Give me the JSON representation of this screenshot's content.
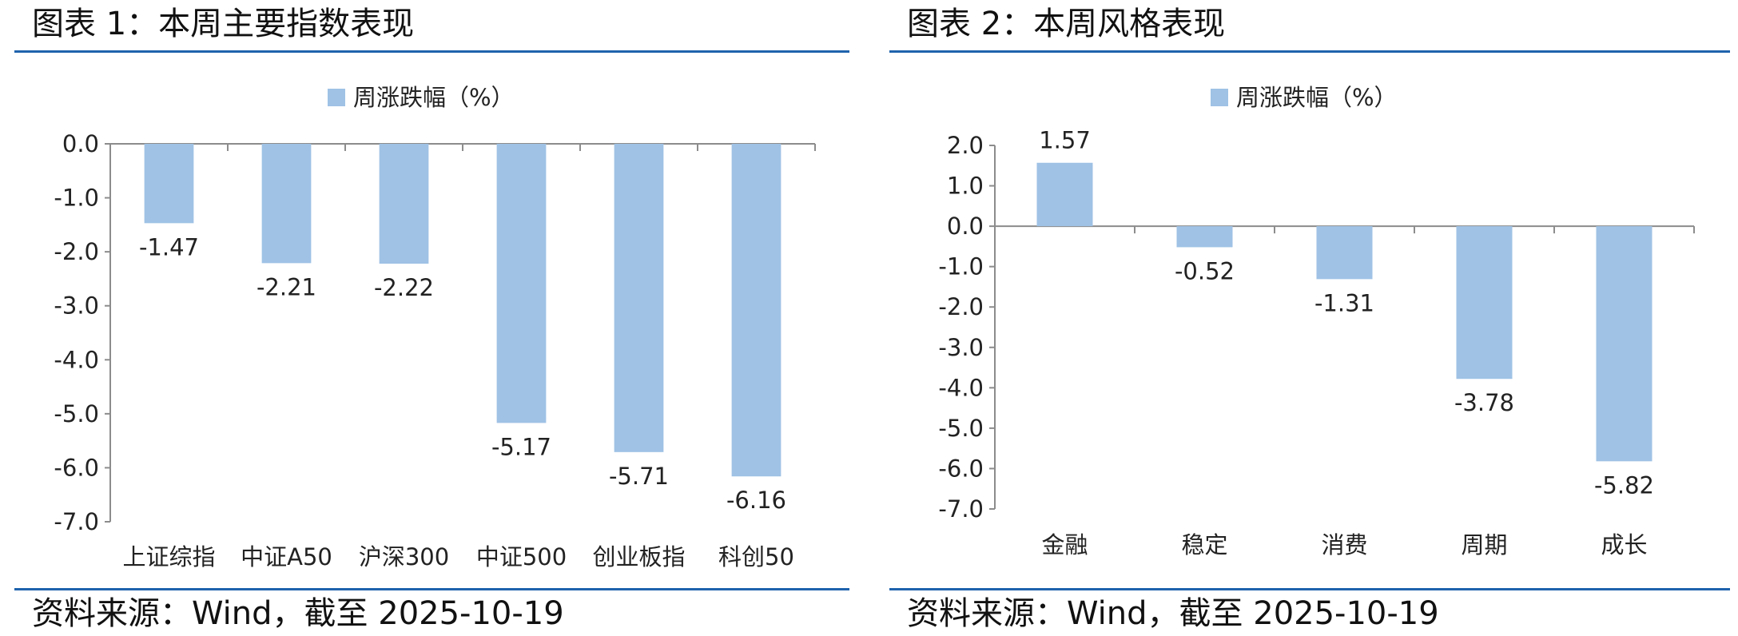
{
  "panels": [
    {
      "title": "图表 1：本周主要指数表现",
      "source": "资料来源：Wind，截至 2025-10-19"
    },
    {
      "title": "图表 2：本周风格表现",
      "source": "资料来源：Wind，截至 2025-10-19"
    }
  ],
  "colors": {
    "bar": "#9fc2e5",
    "rule": "#1f63ad",
    "axis": "#8c8c8c"
  },
  "chart_data": [
    {
      "type": "bar",
      "title": "",
      "legend": [
        "周涨跌幅（%）"
      ],
      "legend_position": "top-center",
      "categories": [
        "上证综指",
        "中证A50",
        "沪深300",
        "中证500",
        "创业板指",
        "科创50"
      ],
      "series": [
        {
          "name": "周涨跌幅（%）",
          "values": [
            -1.47,
            -2.21,
            -2.22,
            -5.17,
            -5.71,
            -6.16
          ]
        }
      ],
      "data_labels": [
        "-1.47",
        "-2.21",
        "-2.22",
        "-5.17",
        "-5.71",
        "-6.16"
      ],
      "yticks": [
        "0.0",
        "-1.0",
        "-2.0",
        "-3.0",
        "-4.0",
        "-5.0",
        "-6.0",
        "-7.0"
      ],
      "ylim": [
        -7,
        0
      ],
      "grid": false,
      "xlabel": "",
      "ylabel": ""
    },
    {
      "type": "bar",
      "title": "",
      "legend": [
        "周涨跌幅（%）"
      ],
      "legend_position": "top-center",
      "categories": [
        "金融",
        "稳定",
        "消费",
        "周期",
        "成长"
      ],
      "series": [
        {
          "name": "周涨跌幅（%）",
          "values": [
            1.57,
            -0.52,
            -1.31,
            -3.78,
            -5.82
          ]
        }
      ],
      "data_labels": [
        "1.57",
        "-0.52",
        "-1.31",
        "-3.78",
        "-5.82"
      ],
      "yticks": [
        "2.0",
        "1.0",
        "0.0",
        "-1.0",
        "-2.0",
        "-3.0",
        "-4.0",
        "-5.0",
        "-6.0",
        "-7.0"
      ],
      "ylim": [
        -7,
        2
      ],
      "grid": false,
      "xlabel": "",
      "ylabel": ""
    }
  ]
}
